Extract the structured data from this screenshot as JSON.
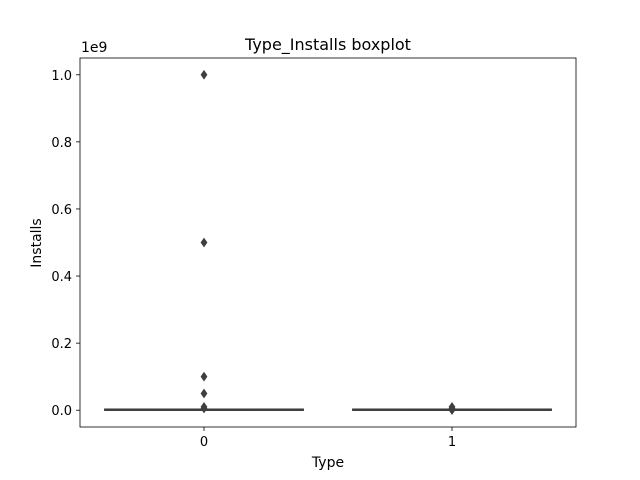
{
  "chart_data": {
    "type": "box",
    "title": "Type_Installs boxplot",
    "xlabel": "Type",
    "ylabel": "Installs",
    "offset_label": "1e9",
    "categories": [
      "0",
      "1"
    ],
    "ylim": [
      -50000000,
      1050000000
    ],
    "yticks": [
      0,
      200000000,
      400000000,
      600000000,
      800000000,
      1000000000
    ],
    "ytick_labels": [
      "0.0",
      "0.2",
      "0.4",
      "0.6",
      "0.8",
      "1.0"
    ],
    "grid": false,
    "boxes": [
      {
        "category": "0",
        "whisker_low": 0,
        "q1": 1000,
        "median": 100000,
        "q3": 1000000,
        "whisker_high": 2500000,
        "outliers": [
          5000000,
          10000000,
          50000000,
          100000000,
          500000000,
          1000000000
        ]
      },
      {
        "category": "1",
        "whisker_low": 0,
        "q1": 1000,
        "median": 10000,
        "q3": 100000,
        "whisker_high": 250000,
        "outliers": [
          500000,
          1000000,
          5000000,
          10000000
        ]
      }
    ],
    "colors": {
      "box_face": "#3274a1",
      "line": "#3f3f3f",
      "outlier": "#3f3f3f",
      "axes": "#000000"
    }
  }
}
